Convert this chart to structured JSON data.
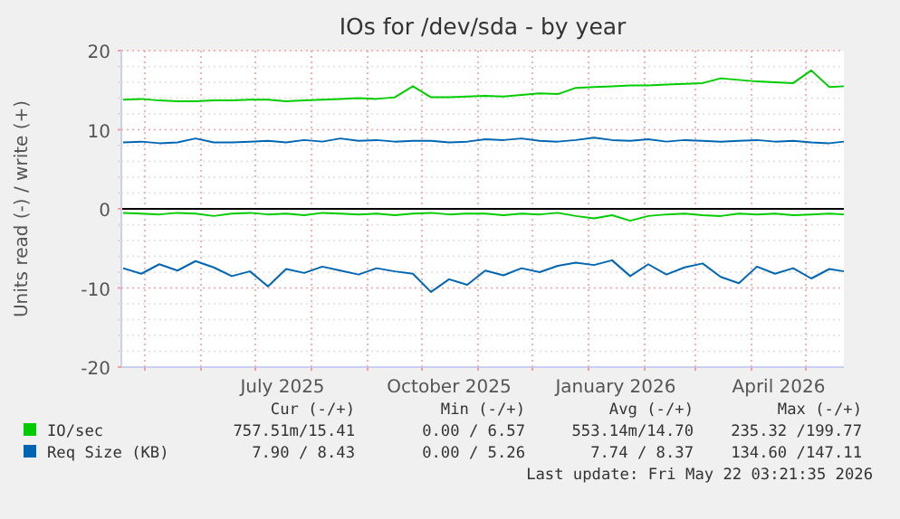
{
  "chart_data": {
    "type": "line",
    "title": "IOs for /dev/sda - by year",
    "ylabel": "Units read (-) / write (+)",
    "x": [
      "2025-04-19",
      "2025-04-29",
      "2025-05-09",
      "2025-05-19",
      "2025-05-29",
      "2025-06-08",
      "2025-06-18",
      "2025-06-28",
      "2025-07-08",
      "2025-07-18",
      "2025-07-28",
      "2025-08-07",
      "2025-08-17",
      "2025-08-27",
      "2025-09-06",
      "2025-09-16",
      "2025-09-26",
      "2025-10-06",
      "2025-10-16",
      "2025-10-26",
      "2025-11-05",
      "2025-11-15",
      "2025-11-25",
      "2025-12-05",
      "2025-12-15",
      "2025-12-25",
      "2026-01-04",
      "2026-01-14",
      "2026-01-24",
      "2026-02-03",
      "2026-02-13",
      "2026-02-23",
      "2026-03-05",
      "2026-03-15",
      "2026-03-25",
      "2026-04-04",
      "2026-04-14",
      "2026-04-24",
      "2026-05-04",
      "2026-05-14",
      "2026-05-22"
    ],
    "series": [
      {
        "name": "IO/sec",
        "color": "#00cc00",
        "values": [
          13.8,
          13.9,
          13.7,
          13.6,
          13.6,
          13.7,
          13.7,
          13.8,
          13.8,
          13.6,
          13.7,
          13.8,
          13.9,
          14.0,
          13.9,
          14.1,
          15.5,
          14.1,
          14.1,
          14.2,
          14.3,
          14.2,
          14.4,
          14.6,
          14.5,
          15.3,
          15.4,
          15.5,
          15.6,
          15.6,
          15.7,
          15.8,
          15.9,
          16.5,
          16.3,
          16.1,
          16.0,
          15.9,
          17.5,
          15.4,
          15.5
        ]
      },
      {
        "name": "Req Size (KB)",
        "color": "#0066b3",
        "values": [
          8.4,
          8.5,
          8.3,
          8.4,
          8.9,
          8.4,
          8.4,
          8.5,
          8.6,
          8.4,
          8.7,
          8.5,
          8.9,
          8.6,
          8.7,
          8.5,
          8.6,
          8.6,
          8.4,
          8.5,
          8.8,
          8.7,
          8.9,
          8.6,
          8.5,
          8.7,
          9.0,
          8.7,
          8.6,
          8.8,
          8.5,
          8.7,
          8.6,
          8.5,
          8.6,
          8.7,
          8.5,
          8.6,
          8.4,
          8.3,
          8.5
        ]
      },
      {
        "color": "#00cc00",
        "values": [
          -0.5,
          -0.6,
          -0.7,
          -0.5,
          -0.6,
          -0.9,
          -0.6,
          -0.5,
          -0.7,
          -0.6,
          -0.8,
          -0.5,
          -0.6,
          -0.7,
          -0.6,
          -0.8,
          -0.6,
          -0.5,
          -0.7,
          -0.6,
          -0.6,
          -0.8,
          -0.6,
          -0.7,
          -0.5,
          -0.9,
          -1.2,
          -0.8,
          -1.5,
          -0.9,
          -0.7,
          -0.6,
          -0.8,
          -0.9,
          -0.6,
          -0.7,
          -0.6,
          -0.8,
          -0.7,
          -0.6,
          -0.7
        ]
      },
      {
        "color": "#0066b3",
        "values": [
          -7.5,
          -8.2,
          -7.0,
          -7.8,
          -6.6,
          -7.4,
          -8.5,
          -7.9,
          -9.8,
          -7.6,
          -8.1,
          -7.3,
          -7.8,
          -8.3,
          -7.5,
          -7.9,
          -8.2,
          -10.5,
          -8.9,
          -9.6,
          -7.8,
          -8.4,
          -7.5,
          -8.0,
          -7.2,
          -6.8,
          -7.1,
          -6.5,
          -8.5,
          -7.0,
          -8.3,
          -7.4,
          -6.9,
          -8.6,
          -9.4,
          -7.3,
          -8.2,
          -7.5,
          -8.8,
          -7.6,
          -7.9
        ]
      }
    ],
    "xlim": [
      "2025-04-18",
      "2026-05-22"
    ],
    "xticks": [
      {
        "value": "2025-05-01",
        "label": null
      },
      {
        "value": "2025-06-01",
        "label": null
      },
      {
        "value": "2025-07-01",
        "label": null
      },
      {
        "value": "2025-07-16",
        "label": "July 2025"
      },
      {
        "value": "2025-08-01",
        "label": null
      },
      {
        "value": "2025-09-01",
        "label": null
      },
      {
        "value": "2025-10-01",
        "label": null
      },
      {
        "value": "2025-10-16",
        "label": "October 2025"
      },
      {
        "value": "2025-11-01",
        "label": null
      },
      {
        "value": "2025-12-01",
        "label": null
      },
      {
        "value": "2026-01-01",
        "label": null
      },
      {
        "value": "2026-01-16",
        "label": "January 2026"
      },
      {
        "value": "2026-02-01",
        "label": null
      },
      {
        "value": "2026-03-01",
        "label": null
      },
      {
        "value": "2026-04-01",
        "label": null
      },
      {
        "value": "2026-04-16",
        "label": "April 2026"
      },
      {
        "value": "2026-05-01",
        "label": null
      }
    ],
    "ylim": [
      -20,
      20
    ],
    "yticks": [
      -20,
      {
        "value": -18,
        "label": null
      },
      {
        "value": -16,
        "label": null
      },
      {
        "value": -14,
        "label": null
      },
      {
        "value": -12,
        "label": null
      },
      -10,
      {
        "value": -8,
        "label": null
      },
      {
        "value": -6,
        "label": null
      },
      {
        "value": -4,
        "label": null
      },
      {
        "value": -2,
        "label": null
      },
      0,
      {
        "value": 2,
        "label": null
      },
      {
        "value": 4,
        "label": null
      },
      {
        "value": 6,
        "label": null
      },
      {
        "value": 8,
        "label": null
      },
      10,
      {
        "value": 12,
        "label": null
      },
      {
        "value": 14,
        "label": null
      },
      {
        "value": 16,
        "label": null
      },
      {
        "value": 18,
        "label": null
      },
      20
    ],
    "ref_lines": [
      {
        "axis": "y",
        "value": 0,
        "color": "#000000"
      }
    ],
    "grid": true,
    "legend": "bottom",
    "marker": "none",
    "line_style": "solid",
    "annotations": [
      "Cur (-/+)",
      "Min (-/+)",
      "Avg (-/+)",
      "Max (-/+)",
      "757.51m/15.41",
      "0.00 / 6.57",
      "553.14m/14.70",
      "235.32 /199.77",
      "7.90 / 8.43",
      "0.00 / 5.26",
      "7.74 / 8.37",
      "134.60 /147.11",
      "Last update: Fri May 22 03:21:35 2026"
    ]
  }
}
